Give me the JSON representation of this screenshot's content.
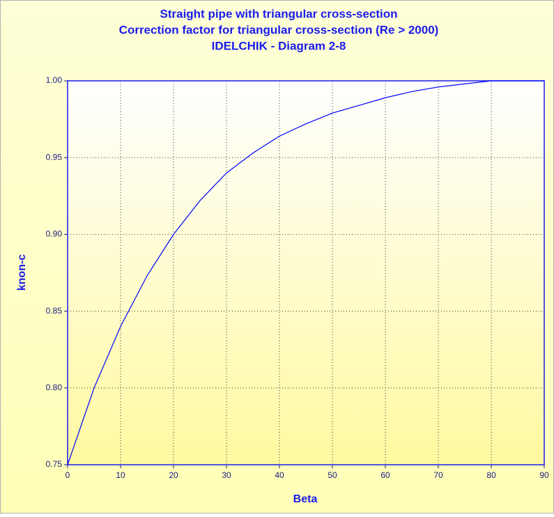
{
  "chart_data": {
    "type": "line",
    "title": [
      "Straight pipe with triangular cross-section",
      "Correction factor for triangular cross-section (Re > 2000)",
      "IDELCHIK - Diagram 2-8"
    ],
    "x_label": "Beta",
    "y_label": "knon-c",
    "x": [
      0,
      5,
      10,
      15,
      20,
      25,
      30,
      35,
      40,
      45,
      50,
      55,
      60,
      65,
      70,
      75,
      80,
      85,
      90
    ],
    "series": [
      {
        "color": "#0000ff",
        "values": [
          0.75,
          0.8,
          0.84,
          0.873,
          0.9,
          0.922,
          0.94,
          0.953,
          0.964,
          0.972,
          0.979,
          0.984,
          0.989,
          0.993,
          0.996,
          0.998,
          1.0,
          1.0,
          1.0
        ]
      }
    ],
    "xlim": [
      0,
      90
    ],
    "xticks": [
      0,
      10,
      20,
      30,
      40,
      50,
      60,
      70,
      80,
      90
    ],
    "ylim": [
      0.75,
      1.0
    ],
    "yticks": [
      0.75,
      {
        "value": 0.8,
        "label": "0.80"
      },
      0.85,
      {
        "value": 0.9,
        "label": "0.90"
      },
      0.95,
      {
        "value": 1.0,
        "label": "1.00"
      }
    ],
    "grid": true
  }
}
